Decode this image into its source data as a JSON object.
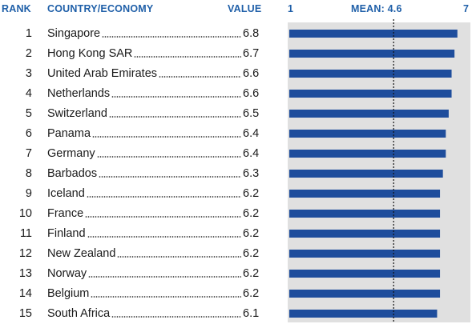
{
  "headers": {
    "rank": "RANK",
    "country": "COUNTRY/ECONOMY",
    "value": "VALUE",
    "axis_min": "1",
    "mean": "MEAN: 4.6",
    "axis_max": "7"
  },
  "colors": {
    "header": "#1f5fa8",
    "bar": "#1e4d9c",
    "panel": "#e0e0e0"
  },
  "chart_data": {
    "type": "bar",
    "orientation": "horizontal",
    "xlim": [
      1,
      7
    ],
    "mean": 4.6,
    "categories": [
      "Singapore",
      "Hong Kong SAR",
      "United Arab Emirates",
      "Netherlands",
      "Switzerland",
      "Panama",
      "Germany",
      "Barbados",
      "Iceland",
      "France",
      "Finland",
      "New Zealand",
      "Norway",
      "Belgium",
      "South Africa"
    ],
    "ranks": [
      "1",
      "2",
      "3",
      "4",
      "5",
      "6",
      "7",
      "8",
      "9",
      "10",
      "11",
      "12",
      "13",
      "14",
      "15"
    ],
    "value_labels": [
      "6.8",
      "6.7",
      "6.6",
      "6.6",
      "6.5",
      "6.4",
      "6.4",
      "6.3",
      "6.2",
      "6.2",
      "6.2",
      "6.2",
      "6.2",
      "6.2",
      "6.1"
    ],
    "values": [
      6.8,
      6.7,
      6.6,
      6.6,
      6.5,
      6.4,
      6.4,
      6.3,
      6.2,
      6.2,
      6.2,
      6.2,
      6.2,
      6.2,
      6.1
    ]
  }
}
